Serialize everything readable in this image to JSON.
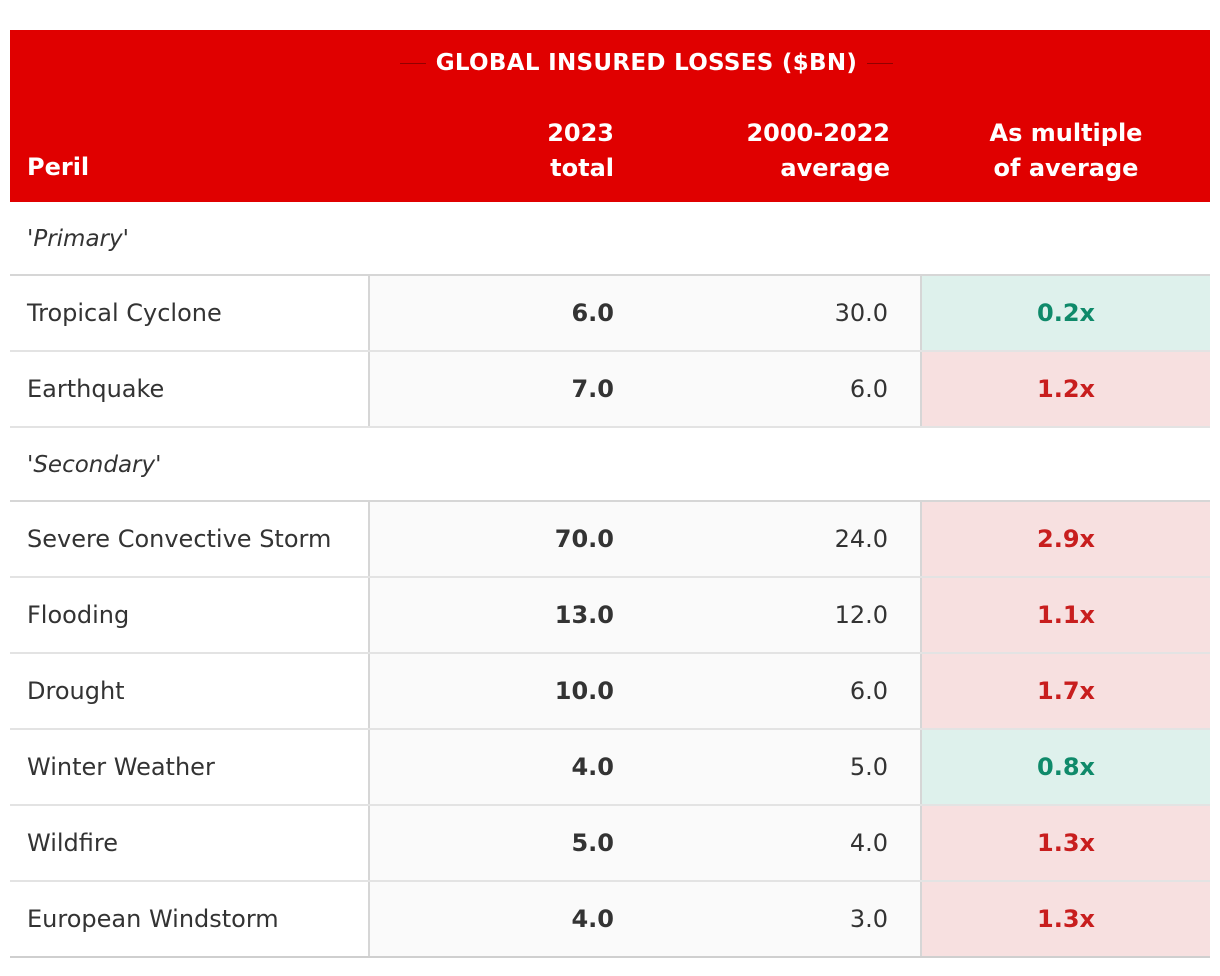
{
  "header": {
    "spanner": "GLOBAL INSURED LOSSES ($BN)",
    "col_peril": "Peril",
    "col_total_l1": "2023",
    "col_total_l2": "total",
    "col_avg_l1": "2000-2022",
    "col_avg_l2": "average",
    "col_mult_l1": "As multiple",
    "col_mult_l2": "of average"
  },
  "colors": {
    "header_bg": "#e00000",
    "above_avg_bg": "#f7e0e0",
    "above_avg_text": "#c81e1e",
    "below_avg_bg": "#def1ec",
    "below_avg_text": "#0f8a6a"
  },
  "groups": [
    {
      "label": "'Primary'",
      "rows": [
        {
          "peril": "Tropical Cyclone",
          "total": "6.0",
          "avg": "30.0",
          "mult": "0.2x",
          "status": "below"
        },
        {
          "peril": "Earthquake",
          "total": "7.0",
          "avg": "6.0",
          "mult": "1.2x",
          "status": "above"
        }
      ]
    },
    {
      "label": "'Secondary'",
      "rows": [
        {
          "peril": "Severe Convective Storm",
          "total": "70.0",
          "avg": "24.0",
          "mult": "2.9x",
          "status": "above"
        },
        {
          "peril": "Flooding",
          "total": "13.0",
          "avg": "12.0",
          "mult": "1.1x",
          "status": "above"
        },
        {
          "peril": "Drought",
          "total": "10.0",
          "avg": "6.0",
          "mult": "1.7x",
          "status": "above"
        },
        {
          "peril": "Winter Weather",
          "total": "4.0",
          "avg": "5.0",
          "mult": "0.8x",
          "status": "below"
        },
        {
          "peril": "Wildfire",
          "total": "5.0",
          "avg": "4.0",
          "mult": "1.3x",
          "status": "above"
        },
        {
          "peril": "European Windstorm",
          "total": "4.0",
          "avg": "3.0",
          "mult": "1.3x",
          "status": "above"
        }
      ]
    }
  ]
}
